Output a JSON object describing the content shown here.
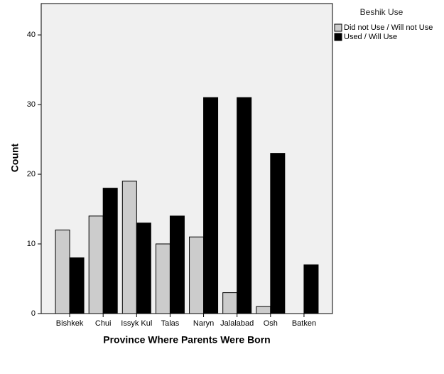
{
  "chart_data": {
    "type": "bar",
    "xlabel": "Province Where Parents Were Born",
    "ylabel": "Count",
    "legend_title": "Beshik Use",
    "legend_position": "right",
    "categories": [
      "Bishkek",
      "Chui",
      "Issyk Kul",
      "Talas",
      "Naryn",
      "Jalalabad",
      "Osh",
      "Batken"
    ],
    "series": [
      {
        "name": "Did not Use / Will not Use",
        "color": "#cccccc",
        "values": [
          12,
          14,
          19,
          10,
          11,
          3,
          1,
          0
        ]
      },
      {
        "name": "Used / Will Use",
        "color": "#000000",
        "values": [
          8,
          18,
          13,
          14,
          31,
          31,
          23,
          7
        ]
      }
    ],
    "ylim": [
      0,
      44.5
    ],
    "yticks": [
      0,
      10,
      20,
      30,
      40
    ]
  }
}
